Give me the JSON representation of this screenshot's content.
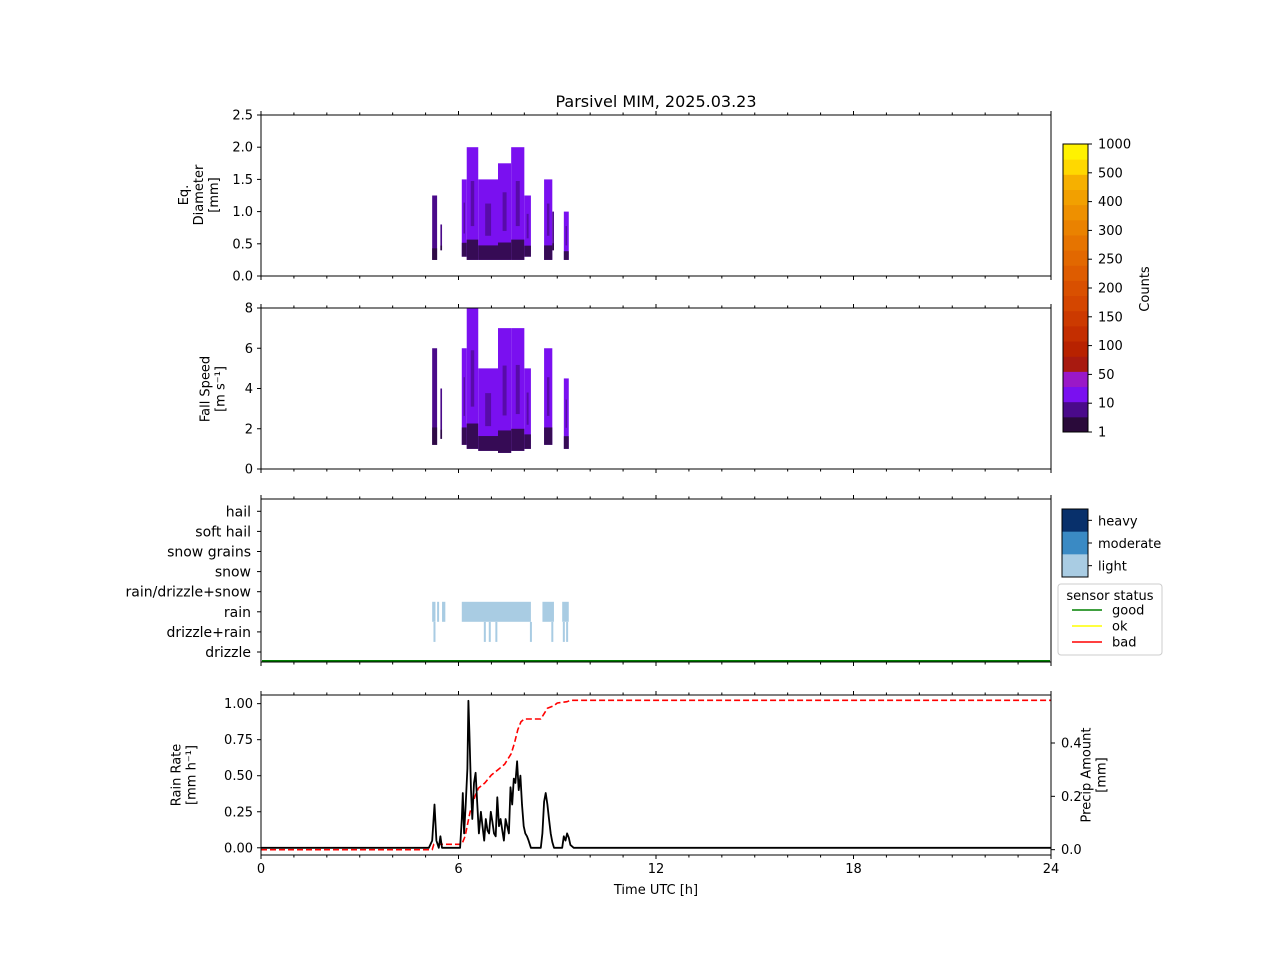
{
  "chart_data": {
    "title": "Parsivel MIM, 2025.03.23",
    "xlabel": "Time UTC [h]",
    "xlim": [
      0,
      24
    ],
    "xticks": [
      0,
      6,
      12,
      18,
      24
    ],
    "xtick_labels": [
      "0",
      "6",
      "12",
      "18",
      "24"
    ],
    "panels": [
      {
        "id": "diameter",
        "type": "heatmap",
        "ylabel": [
          "Eq.",
          "Diameter",
          "[mm]"
        ],
        "ylim": [
          0,
          2.5
        ],
        "yticks": [
          0.0,
          0.5,
          1.0,
          1.5,
          2.0,
          2.5
        ],
        "ytick_labels": [
          "0.0",
          "0.5",
          "1.0",
          "1.5",
          "2.0",
          "2.5"
        ],
        "segments": [
          {
            "x": [
              5.2,
              5.35
            ],
            "y": [
              0.25,
              1.25
            ],
            "level": 1
          },
          {
            "x": [
              5.45,
              5.5
            ],
            "y": [
              0.4,
              0.8
            ],
            "level": 1
          },
          {
            "x": [
              6.1,
              6.25
            ],
            "y": [
              0.3,
              1.5
            ],
            "level": 2
          },
          {
            "x": [
              6.25,
              6.6
            ],
            "y": [
              0.25,
              2.0
            ],
            "level": 2
          },
          {
            "x": [
              6.6,
              7.2
            ],
            "y": [
              0.25,
              1.5
            ],
            "level": 2
          },
          {
            "x": [
              7.2,
              7.6
            ],
            "y": [
              0.25,
              1.75
            ],
            "level": 2
          },
          {
            "x": [
              7.6,
              8.0
            ],
            "y": [
              0.25,
              2.0
            ],
            "level": 2
          },
          {
            "x": [
              8.0,
              8.2
            ],
            "y": [
              0.3,
              1.25
            ],
            "level": 2
          },
          {
            "x": [
              8.6,
              8.85
            ],
            "y": [
              0.25,
              1.5
            ],
            "level": 2
          },
          {
            "x": [
              8.85,
              8.9
            ],
            "y": [
              0.4,
              1.0
            ],
            "level": 1
          },
          {
            "x": [
              9.2,
              9.35
            ],
            "y": [
              0.25,
              1.0
            ],
            "level": 2
          }
        ]
      },
      {
        "id": "fallspeed",
        "type": "heatmap",
        "ylabel": [
          "Fall Speed",
          "[m s⁻¹]"
        ],
        "ylim": [
          0,
          8
        ],
        "yticks": [
          0,
          2,
          4,
          6,
          8
        ],
        "ytick_labels": [
          "0",
          "2",
          "4",
          "6",
          "8"
        ],
        "segments": [
          {
            "x": [
              5.2,
              5.35
            ],
            "y": [
              1.2,
              6.0
            ],
            "level": 1
          },
          {
            "x": [
              5.45,
              5.5
            ],
            "y": [
              1.5,
              4.0
            ],
            "level": 1
          },
          {
            "x": [
              6.1,
              6.25
            ],
            "y": [
              1.2,
              6.0
            ],
            "level": 2
          },
          {
            "x": [
              6.25,
              6.6
            ],
            "y": [
              1.0,
              8.0
            ],
            "level": 2
          },
          {
            "x": [
              6.6,
              7.2
            ],
            "y": [
              0.9,
              5.0
            ],
            "level": 2
          },
          {
            "x": [
              7.2,
              7.6
            ],
            "y": [
              0.8,
              7.0
            ],
            "level": 2
          },
          {
            "x": [
              7.6,
              8.0
            ],
            "y": [
              0.9,
              7.0
            ],
            "level": 2
          },
          {
            "x": [
              8.0,
              8.2
            ],
            "y": [
              1.0,
              5.0
            ],
            "level": 2
          },
          {
            "x": [
              8.6,
              8.85
            ],
            "y": [
              1.2,
              6.0
            ],
            "level": 2
          },
          {
            "x": [
              9.2,
              9.35
            ],
            "y": [
              1.0,
              4.5
            ],
            "level": 2
          }
        ]
      },
      {
        "id": "precip_type",
        "type": "category_timeline",
        "categories": [
          "drizzle",
          "drizzle+rain",
          "rain",
          "rain/drizzle+snow",
          "snow",
          "snow grains",
          "soft hail",
          "hail"
        ],
        "rain_spans": [
          [
            5.2,
            5.3
          ],
          [
            5.35,
            5.4
          ],
          [
            5.5,
            5.6
          ],
          [
            6.1,
            8.2
          ],
          [
            8.55,
            8.9
          ],
          [
            9.15,
            9.35
          ]
        ],
        "drizzle_rain_marks": [
          5.27,
          6.8,
          6.95,
          7.15,
          8.2,
          8.85,
          9.2,
          9.3
        ],
        "sensor_status": "good",
        "intensity_legend": [
          "heavy",
          "moderate",
          "light"
        ],
        "status_legend_title": "sensor status",
        "status_legend": [
          {
            "name": "good",
            "color": "#008000"
          },
          {
            "name": "ok",
            "color": "#ffff00"
          },
          {
            "name": "bad",
            "color": "#ff0000"
          }
        ]
      },
      {
        "id": "rain",
        "type": "line",
        "ylabel": [
          "Rain Rate",
          "[mm h⁻¹]"
        ],
        "ylim": [
          -0.05,
          1.06
        ],
        "yticks": [
          0.0,
          0.25,
          0.5,
          0.75,
          1.0
        ],
        "ytick_labels": [
          "0.00",
          "0.25",
          "0.50",
          "0.75",
          "1.00"
        ],
        "y2label": [
          "Precip Amount",
          "[mm]"
        ],
        "y2lim": [
          -0.02,
          0.58
        ],
        "y2ticks": [
          0.0,
          0.2,
          0.4
        ],
        "y2tick_labels": [
          "0.0",
          "0.2",
          "0.4"
        ],
        "series": [
          {
            "axis": "left",
            "color": "#000000",
            "style": "solid",
            "x": [
              0,
              5.1,
              5.2,
              5.27,
              5.33,
              5.4,
              5.45,
              5.5,
              5.55,
              6.05,
              6.1,
              6.13,
              6.17,
              6.22,
              6.27,
              6.3,
              6.33,
              6.38,
              6.42,
              6.47,
              6.52,
              6.57,
              6.62,
              6.68,
              6.73,
              6.78,
              6.83,
              6.88,
              6.93,
              6.98,
              7.03,
              7.08,
              7.13,
              7.18,
              7.23,
              7.28,
              7.33,
              7.38,
              7.43,
              7.48,
              7.53,
              7.58,
              7.63,
              7.68,
              7.73,
              7.78,
              7.83,
              7.88,
              7.93,
              7.98,
              8.03,
              8.08,
              8.13,
              8.2,
              8.5,
              8.55,
              8.6,
              8.65,
              8.7,
              8.75,
              8.8,
              8.85,
              8.9,
              9.15,
              9.2,
              9.25,
              9.3,
              9.35,
              9.4,
              9.5,
              24
            ],
            "y": [
              0,
              0,
              0.05,
              0.3,
              0.05,
              0,
              0.08,
              0,
              0,
              0,
              0.2,
              0.38,
              0.1,
              0.3,
              0.55,
              1.02,
              0.8,
              0.4,
              0.2,
              0.45,
              0.52,
              0.3,
              0.1,
              0.25,
              0.15,
              0.05,
              0.2,
              0.12,
              0.1,
              0.25,
              0.18,
              0.1,
              0.08,
              0.35,
              0.15,
              0.2,
              0.12,
              0.05,
              0.2,
              0.15,
              0.1,
              0.42,
              0.3,
              0.48,
              0.45,
              0.6,
              0.4,
              0.5,
              0.3,
              0.15,
              0.1,
              0.08,
              0.05,
              0,
              0,
              0.1,
              0.32,
              0.38,
              0.3,
              0.2,
              0.1,
              0.04,
              0,
              0,
              0.08,
              0.05,
              0.1,
              0.07,
              0.02,
              0,
              0
            ]
          },
          {
            "axis": "right",
            "color": "#ff0000",
            "style": "dashed",
            "x": [
              0,
              5.2,
              5.25,
              6.1,
              6.2,
              6.35,
              6.5,
              6.6,
              6.8,
              7.0,
              7.2,
              7.4,
              7.6,
              7.7,
              7.8,
              7.9,
              8.0,
              8.5,
              8.6,
              8.7,
              8.9,
              9.0,
              9.3,
              9.4,
              24
            ],
            "y": [
              0,
              0,
              0.02,
              0.02,
              0.05,
              0.14,
              0.2,
              0.23,
              0.25,
              0.28,
              0.3,
              0.32,
              0.36,
              0.4,
              0.45,
              0.48,
              0.49,
              0.49,
              0.51,
              0.53,
              0.54,
              0.55,
              0.555,
              0.56,
              0.56
            ]
          }
        ]
      }
    ],
    "colorbar": {
      "label": "Counts",
      "tick_labels": [
        "1",
        "10",
        "50",
        "100",
        "150",
        "200",
        "250",
        "300",
        "400",
        "500",
        "1000"
      ],
      "colors": [
        "#2a0a3a",
        "#4a0a8a",
        "#7a10f0",
        "#9a18c8",
        "#a81a10",
        "#b82200",
        "#c42e00",
        "#cc3a00",
        "#d44600",
        "#d95000",
        "#de5c00",
        "#e26800",
        "#e67400",
        "#ea8200",
        "#ee9000",
        "#f2a000",
        "#f6b000",
        "#ffd800",
        "#fff200"
      ]
    },
    "intensity_colors": [
      "#08306b",
      "#3a8ac4",
      "#a9cce3"
    ]
  }
}
